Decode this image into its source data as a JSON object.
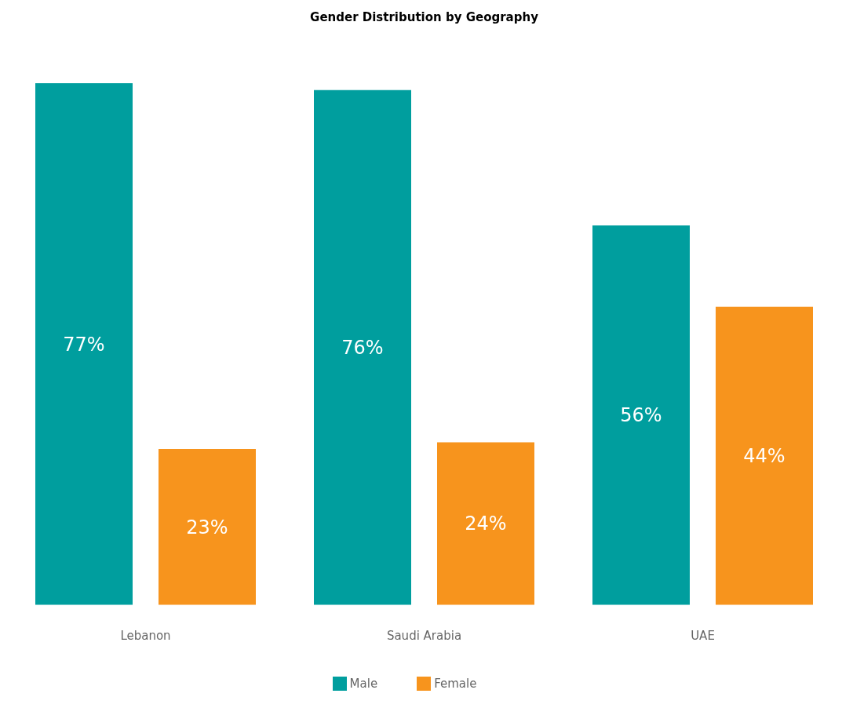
{
  "chart_data": {
    "type": "bar",
    "title": "Gender Distribution by Geography",
    "categories": [
      "Lebanon",
      "Saudi Arabia",
      "UAE"
    ],
    "series": [
      {
        "name": "Male",
        "color": "#009e9e",
        "values": [
          77,
          76,
          56
        ],
        "value_labels": [
          "77%",
          "76%",
          "56%"
        ]
      },
      {
        "name": "Female",
        "color": "#f7941d",
        "values": [
          23,
          24,
          44
        ],
        "value_labels": [
          "23%",
          "24%",
          "44%"
        ]
      }
    ],
    "grid": false,
    "legend": "bottom"
  }
}
